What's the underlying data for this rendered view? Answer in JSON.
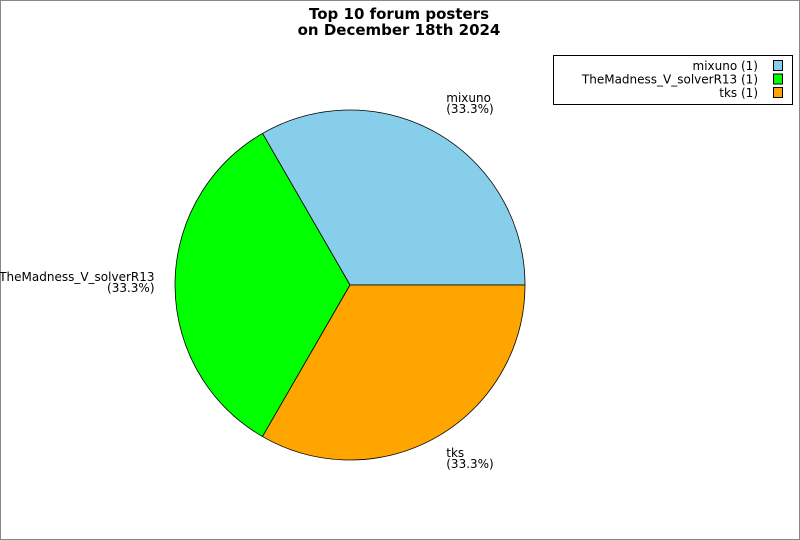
{
  "chart_data": {
    "type": "pie",
    "title": [
      "Top 10 forum posters",
      "on December 18th 2024"
    ],
    "categories": [
      "mixuno",
      "TheMadness_V_solverR13",
      "tks"
    ],
    "values": [
      1,
      1,
      1
    ],
    "percent_labels": [
      "(33.3%)",
      "(33.3%)",
      "(33.3%)"
    ],
    "legend_labels": [
      "mixuno (1)",
      "TheMadness_V_solverR13 (1)",
      "tks (1)"
    ],
    "colors": [
      "#87ceeb",
      "#00ff00",
      "#ffa500"
    ],
    "legend": "top-right"
  }
}
